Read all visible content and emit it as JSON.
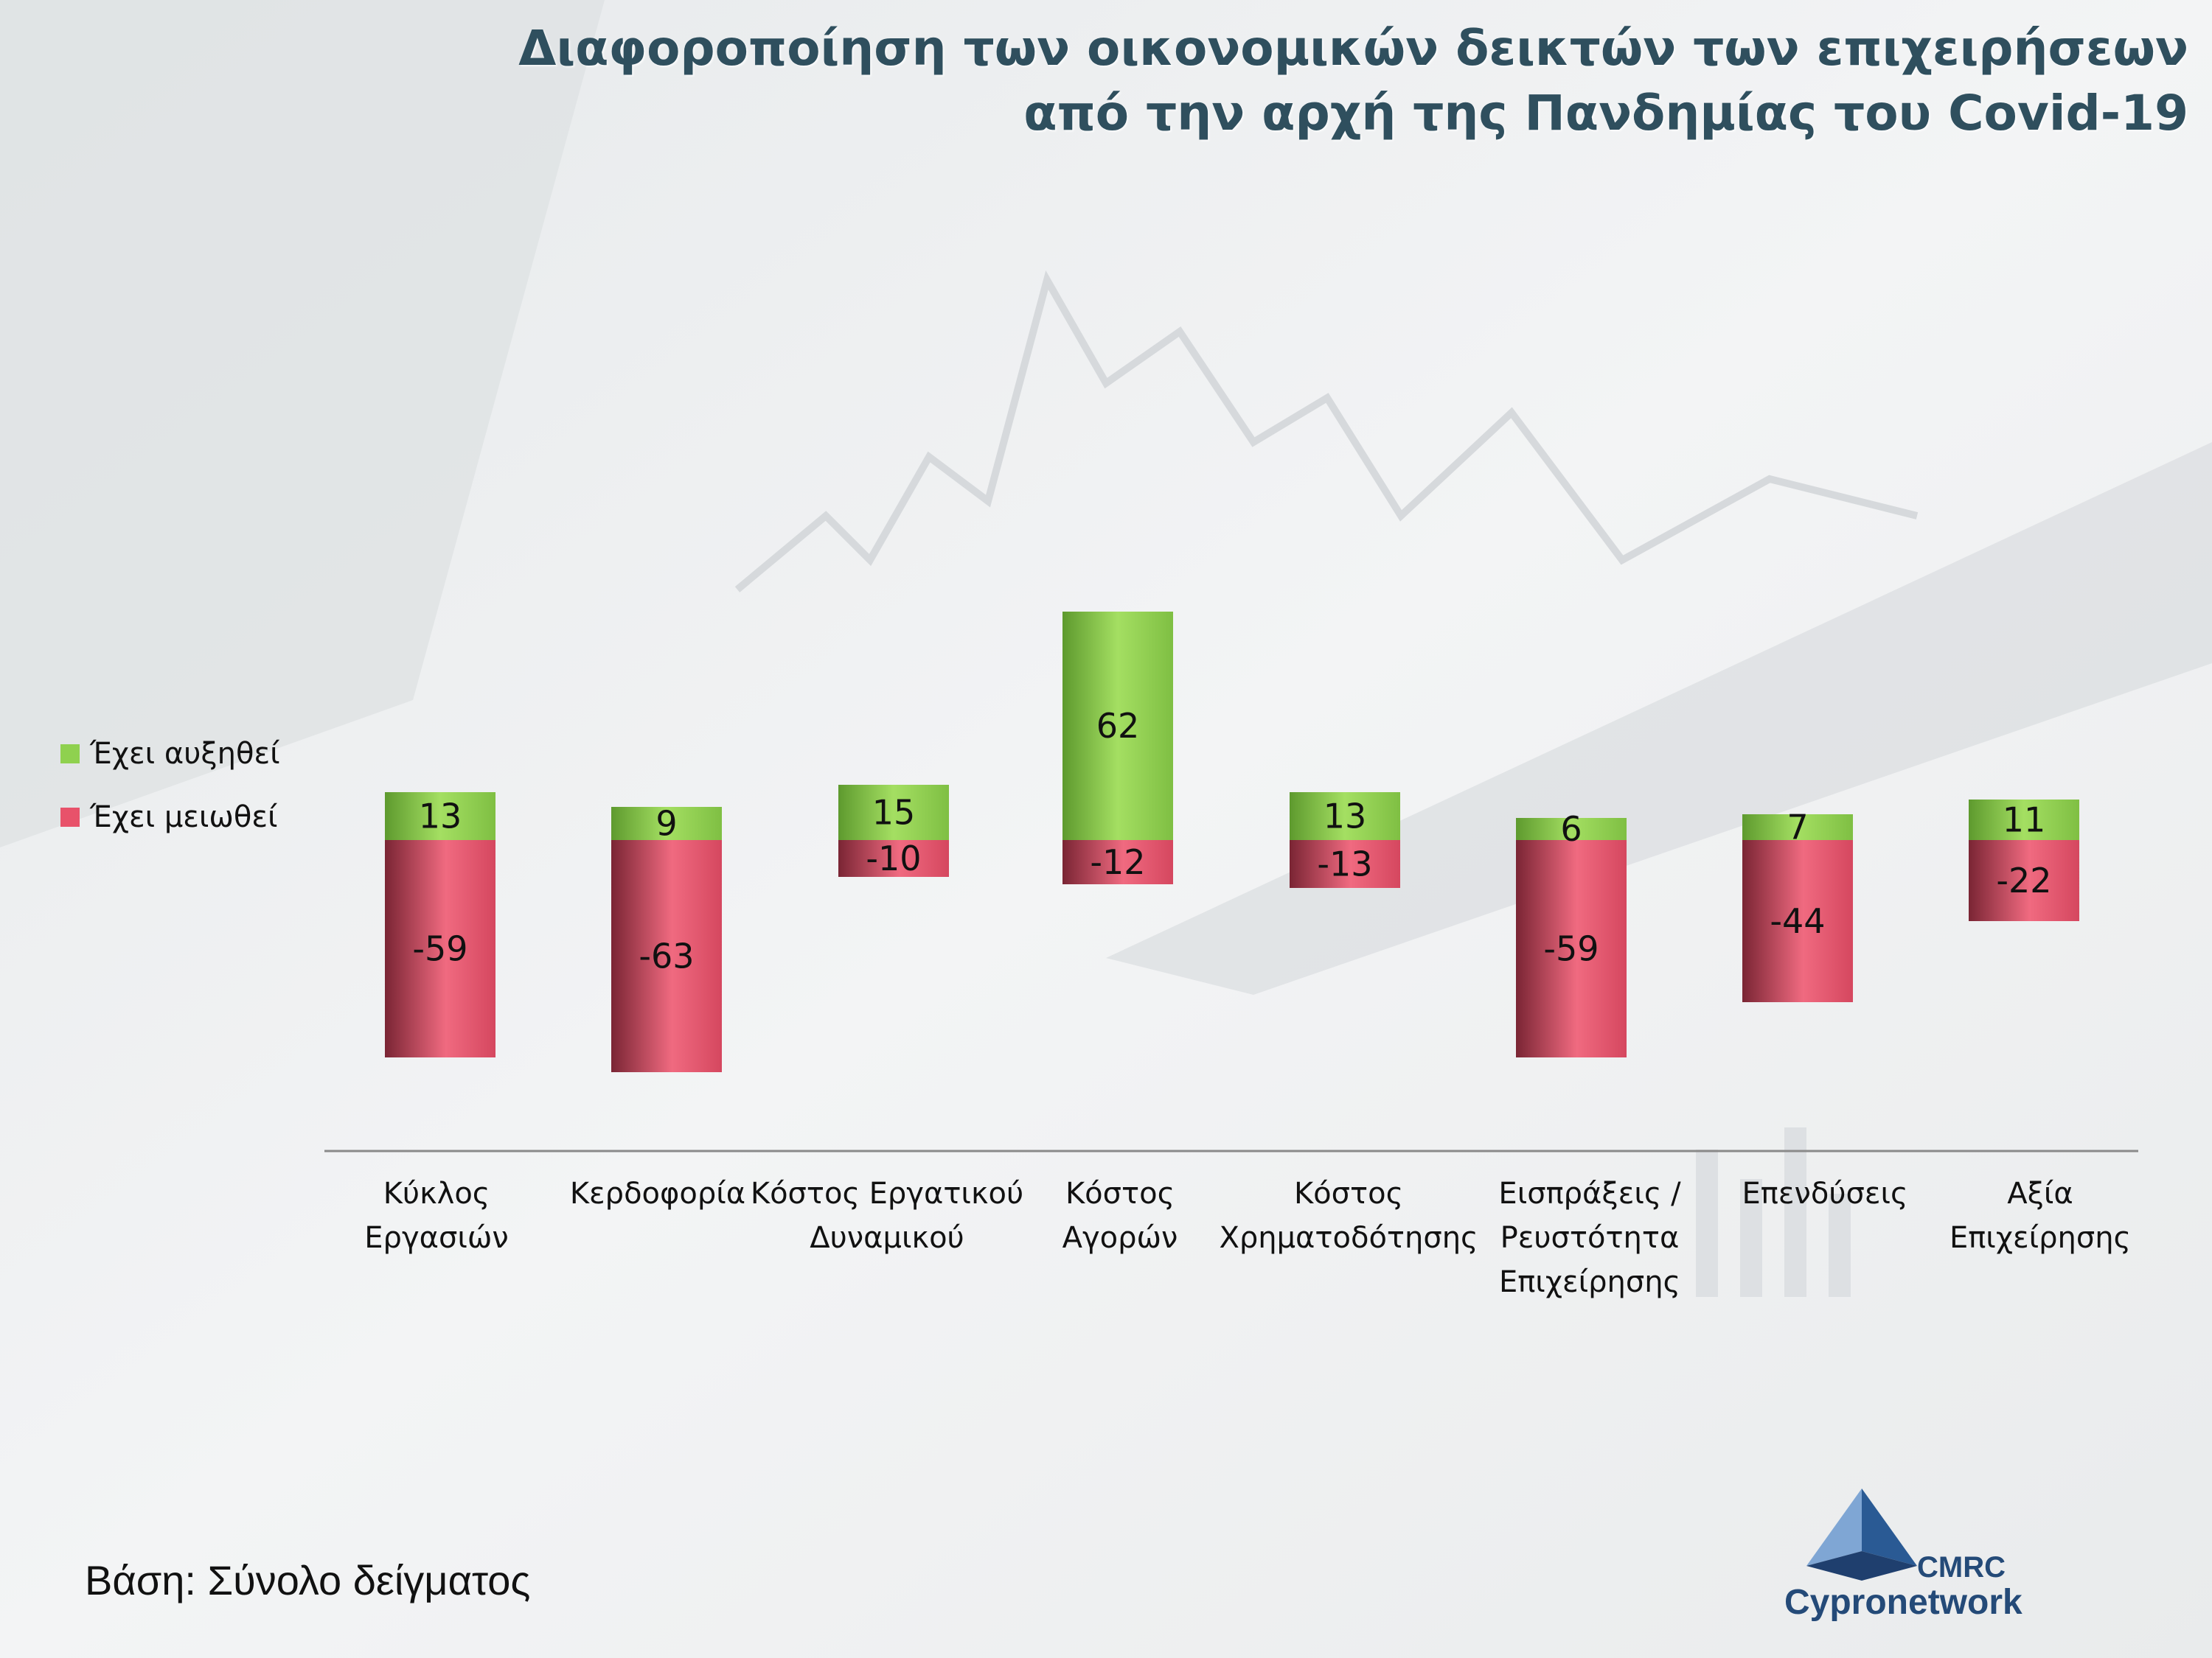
{
  "title": {
    "line1": "Διαφοροποίηση των οικονομικών δεικτών των επιχειρήσεων",
    "line2": "από την αρχή της Πανδημίας του Covid-19"
  },
  "legend": [
    {
      "label": "Έχει αυξηθεί",
      "color": "#8fd14f"
    },
    {
      "label": "Έχει μειωθεί",
      "color": "#e8526a"
    }
  ],
  "footer": "Βάση: Σύνολο δείγματος",
  "logo": {
    "top": "CMRC",
    "bottom": "Cypronetwork"
  },
  "colors": {
    "increase": "#8fd14f",
    "decrease": "#e8526a",
    "title": "#2f4f5e"
  },
  "chart_data": {
    "type": "bar",
    "stacked": "diverging",
    "categories": [
      "Κύκλος Εργασιών",
      "Κερδοφορία",
      "Κόστος Εργατικού Δυναμικού",
      "Κόστος Αγορών",
      "Κόστος Χρηματοδότησης",
      "Εισπράξεις / Ρευστότητα Επιχείρησης",
      "Επενδύσεις",
      "Αξία Επιχείρησης"
    ],
    "category_lines": [
      [
        "Κύκλος",
        "Εργασιών"
      ],
      [
        "Κερδοφορία"
      ],
      [
        "Κόστος Εργατικού",
        "Δυναμικού"
      ],
      [
        "Κόστος",
        "Αγορών"
      ],
      [
        "Κόστος",
        "Χρηματοδότησης"
      ],
      [
        "Εισπράξεις /",
        "Ρευστότητα",
        "Επιχείρησης"
      ],
      [
        "Επενδύσεις"
      ],
      [
        "Αξία",
        "Επιχείρησης"
      ]
    ],
    "series": [
      {
        "name": "Έχει αυξηθεί",
        "values": [
          13,
          9,
          15,
          62,
          13,
          6,
          7,
          11
        ]
      },
      {
        "name": "Έχει μειωθεί",
        "values": [
          -59,
          -63,
          -10,
          -12,
          -13,
          -59,
          -44,
          -22
        ]
      }
    ],
    "legend_position": "left",
    "grid": false
  }
}
